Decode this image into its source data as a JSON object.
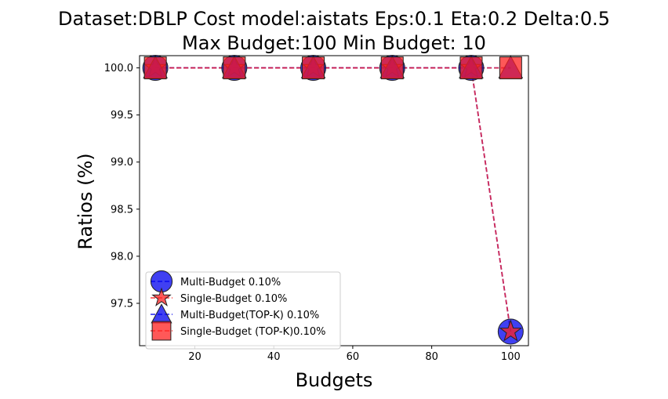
{
  "chart_data": {
    "type": "line",
    "title_lines": [
      "Dataset:DBLP Cost model:aistats Eps:0.1 Eta:0.2 Delta:0.5",
      "Max Budget:100 Min Budget: 10"
    ],
    "xlabel": "Budgets",
    "ylabel": "Ratios (%)",
    "xlim": [
      6,
      104.5
    ],
    "ylim": [
      97.05,
      100.13
    ],
    "xticks": [
      20,
      40,
      60,
      80,
      100
    ],
    "yticks": [
      97.5,
      98.0,
      98.5,
      99.0,
      99.5,
      100.0
    ],
    "xtick_labels": [
      "20",
      "40",
      "60",
      "80",
      "100"
    ],
    "ytick_labels": [
      "97.5",
      "98.0",
      "98.5",
      "99.0",
      "99.5",
      "100.0"
    ],
    "x": [
      10,
      30,
      50,
      70,
      90,
      100
    ],
    "series": [
      {
        "name": "Multi-Budget 0.10%",
        "values": [
          100.0,
          100.0,
          100.0,
          100.0,
          100.0,
          97.2
        ],
        "color": "#0000ee",
        "marker": "circle"
      },
      {
        "name": "Single-Budget 0.10%",
        "values": [
          100.0,
          100.0,
          100.0,
          100.0,
          100.0,
          97.2
        ],
        "color": "#ff2020",
        "marker": "star"
      },
      {
        "name": "Multi-Budget(TOP-K) 0.10%",
        "values": [
          100.0,
          100.0,
          100.0,
          100.0,
          100.0,
          100.0
        ],
        "color": "#0000ee",
        "marker": "triangle"
      },
      {
        "name": "Single-Budget (TOP-K)0.10%",
        "values": [
          100.0,
          100.0,
          100.0,
          100.0,
          100.0,
          100.0
        ],
        "color": "#ff2020",
        "marker": "square"
      }
    ],
    "legend_position": "lower-left",
    "grid": false
  }
}
